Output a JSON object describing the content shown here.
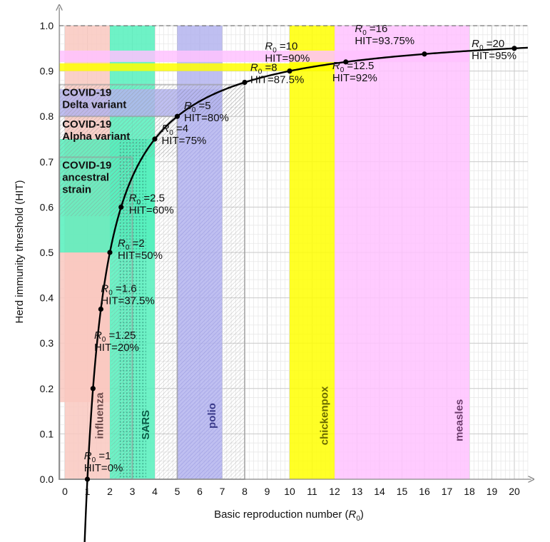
{
  "chart_data": {
    "type": "line",
    "xlabel_prefix": "Basic reproduction number (",
    "xlabel_symbol": "R",
    "xlabel_sub": "0",
    "xlabel_suffix": ")",
    "ylabel": "Herd immunity threshold (HIT)",
    "xlim": [
      0,
      20
    ],
    "ylim": [
      0,
      1
    ],
    "grid": true,
    "x_ticks": [
      "0",
      "1",
      "2",
      "3",
      "4",
      "5",
      "6",
      "7",
      "8",
      "9",
      "10",
      "11",
      "12",
      "13",
      "14",
      "15",
      "16",
      "17",
      "18",
      "19",
      "20"
    ],
    "y_ticks": [
      "0.0",
      "0.1",
      "0.2",
      "0.3",
      "0.4",
      "0.5",
      "0.6",
      "0.7",
      "0.8",
      "0.9",
      "1.0"
    ],
    "curve": {
      "formula": "HIT = 1 - 1/R0",
      "x_from": 0.85,
      "x_to": 20.6
    },
    "points": [
      {
        "r0": 1,
        "hit": 0.0,
        "label_r0": "=1",
        "label_hit": "HIT=0%"
      },
      {
        "r0": 1.25,
        "hit": 0.2,
        "label_r0": "=1.25",
        "label_hit": "HIT=20%"
      },
      {
        "r0": 1.6,
        "hit": 0.375,
        "label_r0": "=1.6",
        "label_hit": "HIT=37.5%"
      },
      {
        "r0": 2,
        "hit": 0.5,
        "label_r0": "=2",
        "label_hit": "HIT=50%"
      },
      {
        "r0": 2.5,
        "hit": 0.6,
        "label_r0": "=2.5",
        "label_hit": "HIT=60%"
      },
      {
        "r0": 4,
        "hit": 0.75,
        "label_r0": "=4",
        "label_hit": "HIT=75%"
      },
      {
        "r0": 5,
        "hit": 0.8,
        "label_r0": "=5",
        "label_hit": "HIT=80%"
      },
      {
        "r0": 8,
        "hit": 0.875,
        "label_r0": "=8",
        "label_hit": "HIT=87.5%"
      },
      {
        "r0": 10,
        "hit": 0.9,
        "label_r0": "=10",
        "label_hit": "HIT=90%"
      },
      {
        "r0": 12.5,
        "hit": 0.92,
        "label_r0": "=12.5",
        "label_hit": "HIT=92%"
      },
      {
        "r0": 16,
        "hit": 0.9375,
        "label_r0": "=16",
        "label_hit": "HIT=93.75%"
      },
      {
        "r0": 20,
        "hit": 0.95,
        "label_r0": "=20",
        "label_hit": "HIT=95%"
      }
    ],
    "diseases": [
      {
        "name": "influenza",
        "r0_range": [
          0,
          2
        ],
        "hit_range": [
          0.17,
          0.5
        ],
        "color": "#f9c8c0",
        "label_color": "#6b4a4a",
        "pattern": "none"
      },
      {
        "name": "SARS",
        "r0_range": [
          2,
          4
        ],
        "hit_range": [
          0.5,
          0.75
        ],
        "color": "#55f0bc",
        "label_color": "#0a5a46",
        "pattern": "dots"
      },
      {
        "name": "polio",
        "r0_range": [
          5,
          7
        ],
        "hit_range": [
          0.8,
          0.86
        ],
        "color": "#b4b4ee",
        "label_color": "#3a3a8a",
        "pattern": "diagonal"
      },
      {
        "name": "chickenpox",
        "r0_range": [
          10,
          12
        ],
        "hit_range": [
          0.9,
          0.917
        ],
        "color": "#ffff00",
        "label_color": "#6b6b00",
        "pattern": "none"
      },
      {
        "name": "measles",
        "r0_range": [
          12,
          18
        ],
        "hit_range": [
          0.92,
          0.945
        ],
        "color": "#ffc2ff",
        "label_color": "#6b3a6b",
        "pattern": "none"
      }
    ],
    "covid_variants": [
      {
        "line1": "COVID-19",
        "line2": "ancestral",
        "line3": "strain",
        "r0_range": [
          0,
          3
        ],
        "hit_range": [
          0.58,
          0.71
        ]
      },
      {
        "line1": "COVID-19",
        "line2": "Alpha variant",
        "line3": "",
        "r0_range": [
          0,
          5
        ],
        "hit_range": [
          0.71,
          0.8
        ]
      },
      {
        "line1": "COVID-19",
        "line2": "Delta variant",
        "line3": "",
        "r0_range": [
          0,
          8
        ],
        "hit_range": [
          0.8,
          0.87
        ]
      }
    ]
  }
}
